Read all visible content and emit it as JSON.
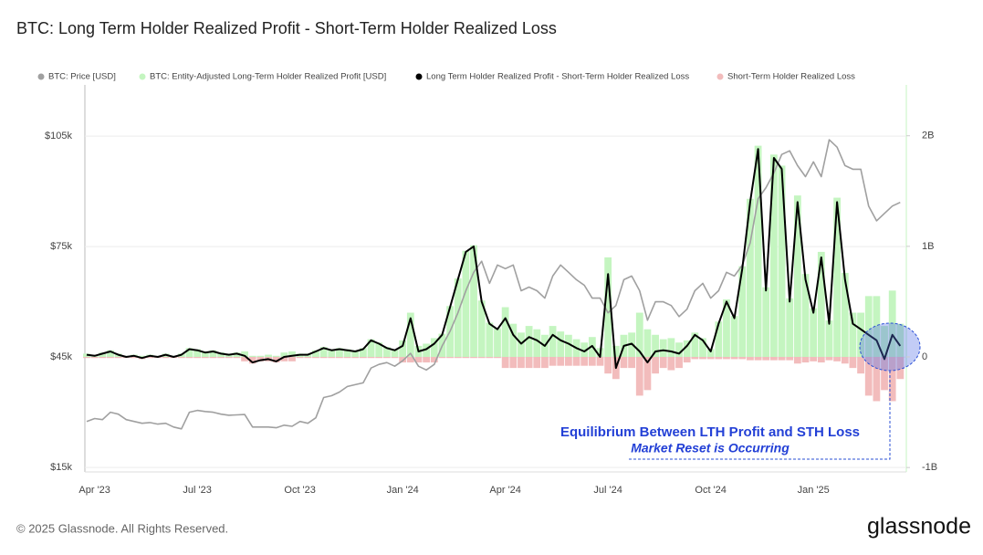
{
  "chart_data": {
    "type": "combo",
    "title": "BTC: Long Term Holder Realized Profit - Short-Term Holder Realized Loss",
    "source": "© 2025 Glassnode. All Rights Reserved.",
    "brand": "glassnode",
    "annotations": [
      "Equilibrium Between LTH Profit and STH Loss",
      "Market Reset is Occurring"
    ],
    "grid": true,
    "categories": [
      null,
      "Apr '23",
      null,
      null,
      null,
      null,
      null,
      null,
      null,
      null,
      null,
      null,
      null,
      null,
      "Jul '23",
      null,
      null,
      null,
      null,
      null,
      null,
      null,
      null,
      null,
      null,
      null,
      null,
      "Oct '23",
      null,
      null,
      null,
      null,
      null,
      null,
      null,
      null,
      null,
      null,
      null,
      null,
      "Jan '24",
      null,
      null,
      null,
      null,
      null,
      null,
      null,
      null,
      null,
      null,
      null,
      null,
      "Apr '24",
      null,
      null,
      null,
      null,
      null,
      null,
      null,
      null,
      null,
      null,
      null,
      null,
      "Jul '24",
      null,
      null,
      null,
      null,
      null,
      null,
      null,
      null,
      null,
      null,
      null,
      null,
      "Oct '24",
      null,
      null,
      null,
      null,
      null,
      null,
      null,
      null,
      null,
      null,
      null,
      null,
      "Jan '25",
      null,
      null,
      null,
      null,
      null,
      null,
      null,
      null,
      null,
      null,
      null
    ],
    "ylim": [
      13800,
      118900
    ],
    "yticks": [
      {
        "value": 15000,
        "label": "$15k"
      },
      {
        "value": 45000,
        "label": "$45k"
      },
      {
        "value": 75000,
        "label": "$75k"
      },
      {
        "value": 105000,
        "label": "$105k"
      }
    ],
    "y2lim": [
      -1.04,
      2.46
    ],
    "y2ticks": [
      {
        "value": -1,
        "label": "-1B"
      },
      0,
      {
        "value": 1,
        "label": "1B"
      },
      {
        "value": 2,
        "label": "2B"
      }
    ],
    "series": [
      {
        "name": "BTC: Price [USD]",
        "type": "line",
        "color": "#a0a0a0",
        "axis": "y",
        "values": [
          27500,
          28300,
          28000,
          30000,
          29500,
          28000,
          27500,
          27000,
          27200,
          26800,
          27000,
          26000,
          25500,
          30000,
          30500,
          30200,
          30000,
          29500,
          29200,
          29300,
          29400,
          26000,
          26000,
          26000,
          25800,
          26500,
          26200,
          27500,
          27000,
          28500,
          34000,
          34500,
          35500,
          37000,
          37500,
          38000,
          42000,
          43000,
          43500,
          42500,
          44000,
          46000,
          42500,
          41500,
          43000,
          48000,
          52000,
          57000,
          63000,
          68000,
          71000,
          65000,
          70000,
          69000,
          70000,
          63000,
          64000,
          63000,
          61000,
          67000,
          70000,
          68000,
          66000,
          64500,
          61000,
          61000,
          57000,
          59000,
          66000,
          67000,
          63000,
          55000,
          60000,
          60000,
          59000,
          56000,
          58000,
          63000,
          65000,
          61000,
          63000,
          68000,
          67000,
          70000,
          76000,
          88000,
          91000,
          95000,
          100000,
          101000,
          97000,
          94000,
          98000,
          94000,
          104000,
          102000,
          97000,
          96000,
          96000,
          86000,
          82000,
          84000,
          86000,
          87000
        ]
      },
      {
        "name": "BTC: Entity-Adjusted Long-Term Holder Realized Profit [USD]",
        "type": "bar",
        "color": "#c4f5c0",
        "axis": "y2",
        "values": [
          0.03,
          0.02,
          0.04,
          0.06,
          0.03,
          0.01,
          0.02,
          0.01,
          0.02,
          0.01,
          0.03,
          0.01,
          0.03,
          0.08,
          0.07,
          0.05,
          0.06,
          0.04,
          0.03,
          0.04,
          0.05,
          0.01,
          0.01,
          0.02,
          0.01,
          0.04,
          0.05,
          0.03,
          0.03,
          0.06,
          0.09,
          0.07,
          0.08,
          0.07,
          0.06,
          0.08,
          0.16,
          0.13,
          0.09,
          0.07,
          0.15,
          0.4,
          0.1,
          0.12,
          0.17,
          0.21,
          0.46,
          0.71,
          0.96,
          1.01,
          0.51,
          0.31,
          0.26,
          0.45,
          0.3,
          0.22,
          0.28,
          0.25,
          0.2,
          0.28,
          0.23,
          0.2,
          0.16,
          0.13,
          0.18,
          0.08,
          0.9,
          0.1,
          0.2,
          0.22,
          0.4,
          0.25,
          0.2,
          0.16,
          0.17,
          0.13,
          0.15,
          0.22,
          0.17,
          0.07,
          0.32,
          0.52,
          0.37,
          0.82,
          1.43,
          1.91,
          0.63,
          1.83,
          1.73,
          0.53,
          1.46,
          0.75,
          0.44,
          0.95,
          0.33,
          1.44,
          0.76,
          0.4,
          0.4,
          0.55,
          0.55,
          0.28,
          0.6,
          0.3
        ]
      },
      {
        "name": "Long Term Holder Realized Profit - Short-Term Holder Realized Loss",
        "type": "line",
        "color": "#000000",
        "axis": "y2",
        "values": [
          0.02,
          0.01,
          0.03,
          0.05,
          0.02,
          0.0,
          0.01,
          -0.01,
          0.01,
          0.0,
          0.02,
          0.0,
          0.02,
          0.07,
          0.06,
          0.04,
          0.05,
          0.03,
          0.02,
          0.03,
          0.01,
          -0.05,
          -0.03,
          -0.02,
          -0.04,
          0.0,
          0.01,
          0.02,
          0.02,
          0.05,
          0.08,
          0.06,
          0.07,
          0.06,
          0.05,
          0.07,
          0.15,
          0.12,
          0.08,
          0.06,
          0.1,
          0.35,
          0.05,
          0.07,
          0.12,
          0.2,
          0.45,
          0.7,
          0.95,
          1.0,
          0.5,
          0.3,
          0.25,
          0.35,
          0.2,
          0.12,
          0.18,
          0.15,
          0.1,
          0.2,
          0.15,
          0.12,
          0.08,
          0.05,
          0.1,
          0.0,
          0.75,
          -0.1,
          0.1,
          0.12,
          0.05,
          -0.05,
          0.05,
          0.06,
          0.05,
          0.03,
          0.1,
          0.2,
          0.15,
          0.05,
          0.3,
          0.5,
          0.35,
          0.8,
          1.4,
          1.88,
          0.6,
          1.8,
          1.7,
          0.5,
          1.4,
          0.7,
          0.4,
          0.9,
          0.3,
          1.4,
          0.7,
          0.3,
          0.25,
          0.2,
          0.15,
          -0.02,
          0.2,
          0.1
        ]
      },
      {
        "name": "Short-Term Holder Realized Loss",
        "type": "bar",
        "color": "#f2bcbc",
        "axis": "y2",
        "values": [
          -0.01,
          -0.01,
          -0.01,
          -0.01,
          -0.01,
          -0.01,
          -0.01,
          -0.02,
          -0.01,
          -0.01,
          -0.01,
          -0.01,
          -0.01,
          -0.01,
          -0.01,
          -0.01,
          -0.01,
          -0.01,
          -0.01,
          -0.01,
          -0.04,
          -0.06,
          -0.04,
          -0.04,
          -0.05,
          -0.04,
          -0.04,
          -0.01,
          -0.01,
          -0.01,
          -0.01,
          -0.01,
          -0.01,
          -0.01,
          -0.01,
          -0.01,
          -0.01,
          -0.01,
          -0.01,
          -0.01,
          -0.05,
          -0.05,
          -0.05,
          -0.05,
          -0.05,
          -0.01,
          -0.01,
          -0.01,
          -0.01,
          -0.01,
          -0.01,
          -0.01,
          -0.01,
          -0.1,
          -0.1,
          -0.1,
          -0.1,
          -0.1,
          -0.1,
          -0.08,
          -0.08,
          -0.08,
          -0.08,
          -0.08,
          -0.08,
          -0.08,
          -0.15,
          -0.2,
          -0.1,
          -0.1,
          -0.35,
          -0.3,
          -0.15,
          -0.1,
          -0.12,
          -0.1,
          -0.05,
          -0.02,
          -0.02,
          -0.02,
          -0.02,
          -0.02,
          -0.02,
          -0.02,
          -0.03,
          -0.03,
          -0.03,
          -0.03,
          -0.03,
          -0.03,
          -0.06,
          -0.05,
          -0.04,
          -0.05,
          -0.03,
          -0.04,
          -0.06,
          -0.1,
          -0.15,
          -0.35,
          -0.4,
          -0.3,
          -0.4,
          -0.2
        ]
      }
    ]
  }
}
